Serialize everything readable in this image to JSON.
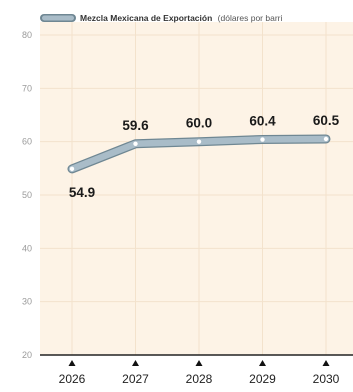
{
  "chart_data": {
    "type": "line",
    "title": "",
    "xlabel": "",
    "ylabel": "",
    "categories": [
      "2026",
      "2027",
      "2028",
      "2029",
      "2030"
    ],
    "series": [
      {
        "name": "Mezcla Mexicana de Exportación",
        "unit_note": "(dólares por barri",
        "values": [
          54.9,
          59.6,
          60.0,
          60.4,
          60.5
        ],
        "labels": [
          "54.9",
          "59.6",
          "60.0",
          "60.4",
          "60.5"
        ]
      }
    ],
    "ylim": [
      20,
      80
    ],
    "yticks": [
      "20",
      "30",
      "40",
      "50",
      "60",
      "70",
      "80"
    ],
    "grid": true,
    "legend": "top",
    "colors": {
      "line": "#a9bcc8",
      "line_outline": "#6f8793",
      "marker": "#ffffff",
      "plot_background": "#fdf3e6",
      "grid": "#f3e2cc",
      "axis": "#222222",
      "tick_arrow": "#111111"
    }
  }
}
